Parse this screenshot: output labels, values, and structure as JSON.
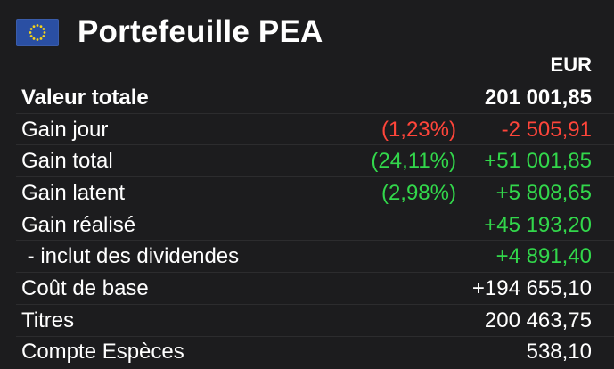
{
  "header": {
    "title": "Portefeuille PEA",
    "flag_icon": "eu-flag-icon"
  },
  "currency": "EUR",
  "colors": {
    "background": "#1c1c1e",
    "negative": "#ff453a",
    "positive": "#32d74b",
    "text": "#ffffff"
  },
  "rows": [
    {
      "label": "Valeur totale",
      "pct": "",
      "value": "201 001,85"
    },
    {
      "label": "Gain jour",
      "pct": "(1,23%)",
      "value": "-2 505,91"
    },
    {
      "label": "Gain total",
      "pct": "(24,11%)",
      "value": "+51 001,85"
    },
    {
      "label": "Gain latent",
      "pct": "(2,98%)",
      "value": "+5 808,65"
    },
    {
      "label": "Gain réalisé",
      "pct": "",
      "value": "+45 193,20"
    },
    {
      "label": " - inclut des dividendes",
      "pct": "",
      "value": "+4 891,40"
    },
    {
      "label": "Coût de base",
      "pct": "",
      "value": "+194 655,10"
    },
    {
      "label": "Titres",
      "pct": "",
      "value": "200 463,75"
    },
    {
      "label": "Compte Espèces",
      "pct": "",
      "value": "538,10"
    }
  ]
}
